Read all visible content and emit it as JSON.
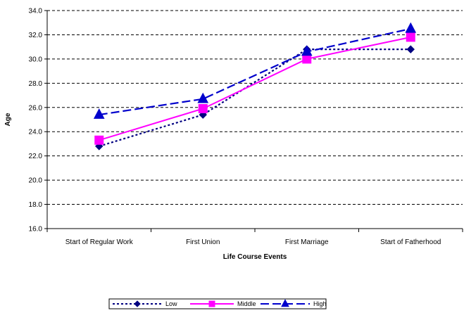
{
  "chart_data": {
    "type": "line",
    "title": "",
    "xlabel": "Life Course Events",
    "ylabel": "Age",
    "categories": [
      "Start of Regular Work",
      "First Union",
      "First Marriage",
      "Start of Fatherhood"
    ],
    "ylim": [
      16.0,
      34.0
    ],
    "yticks": [
      "16.0",
      "18.0",
      "20.0",
      "22.0",
      "24.0",
      "26.0",
      "28.0",
      "30.0",
      "32.0",
      "34.0"
    ],
    "grid": "horizontal dashed",
    "legend_position": "bottom",
    "series": [
      {
        "name": "Low",
        "values": [
          22.8,
          25.4,
          30.8,
          30.8
        ],
        "color": "#000080",
        "line": "dotted",
        "marker": "diamond"
      },
      {
        "name": "Middle",
        "values": [
          23.3,
          25.9,
          30.0,
          31.8
        ],
        "color": "#FF00FF",
        "line": "solid",
        "marker": "square"
      },
      {
        "name": "High",
        "values": [
          25.4,
          26.7,
          30.6,
          32.5
        ],
        "color": "#0000CC",
        "line": "dashed",
        "marker": "triangle"
      }
    ]
  }
}
